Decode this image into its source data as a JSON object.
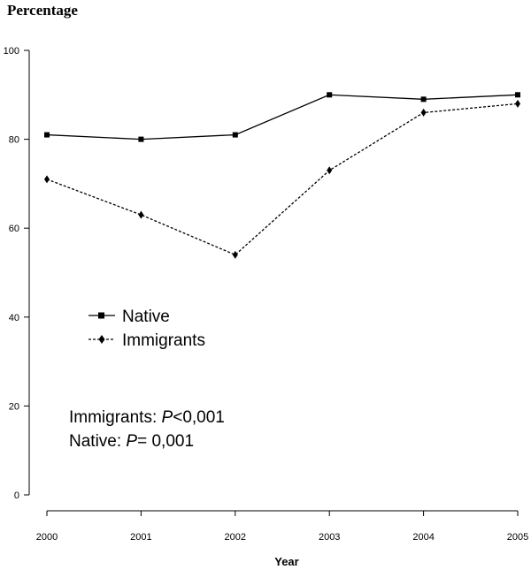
{
  "chart_data": {
    "type": "line",
    "ylabel": "Percentage",
    "xlabel": "Year",
    "x": [
      "2000",
      "2001",
      "2002",
      "2003",
      "2004",
      "2005"
    ],
    "ylim": [
      0,
      100
    ],
    "yticks": [
      "0",
      "20",
      "40",
      "60",
      "80",
      "100"
    ],
    "grid": false,
    "legend_position": "middle-left",
    "series": [
      {
        "name": "Native",
        "marker": "square",
        "line_style": "solid",
        "values": [
          81,
          80,
          81,
          90,
          89,
          90
        ]
      },
      {
        "name": "Immigrants",
        "marker": "diamond",
        "line_style": "dashed",
        "values": [
          71,
          63,
          54,
          73,
          86,
          88
        ]
      }
    ],
    "annotations": [
      {
        "label": "Immigrants: ",
        "p_symbol": "P",
        "value": "<0,001"
      },
      {
        "label": "Native: ",
        "p_symbol": "P",
        "value": "= 0,001"
      }
    ]
  }
}
